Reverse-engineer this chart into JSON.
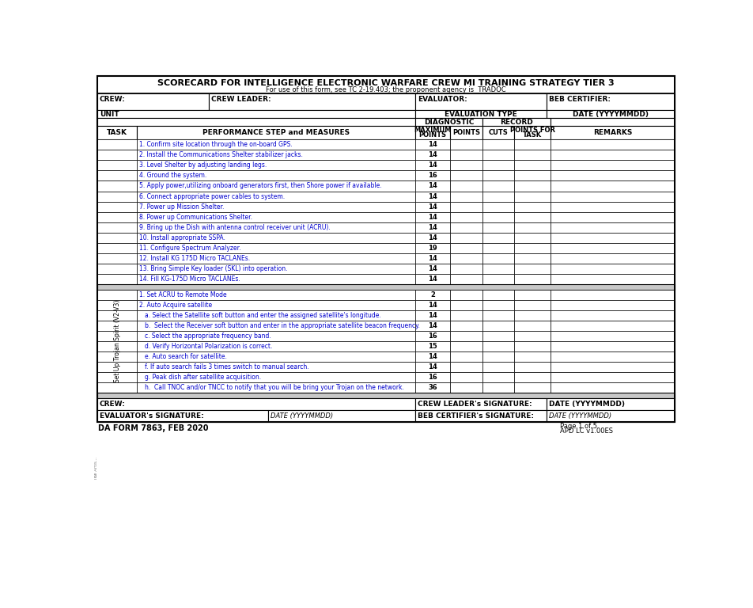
{
  "title": "SCORECARD FOR INTELLIGENCE ELECTRONIC WARFARE CREW MI TRAINING STRATEGY TIER 3",
  "subtitle": "For use of this form, see TC 2-19.403; the proponent agency is  TRADOC",
  "section1_rows": [
    [
      "1. Confirm site location through the on-board GPS.",
      "14"
    ],
    [
      "2. Install the Communications Shelter stabilizer jacks.",
      "14"
    ],
    [
      "3. Level Shelter by adjusting landing legs.",
      "14"
    ],
    [
      "4. Ground the system.",
      "16"
    ],
    [
      "5. Apply power,utilizing onboard generators first, then Shore power if available.",
      "14"
    ],
    [
      "6. Connect appropriate power cables to system.",
      "14"
    ],
    [
      "7. Power up Mission Shelter.",
      "14"
    ],
    [
      "8. Power up Communications Shelter.",
      "14"
    ],
    [
      "9. Bring up the Dish with antenna control receiver unit (ACRU).",
      "14"
    ],
    [
      "10. Install appropriate SSPA.",
      "14"
    ],
    [
      "11. Configure Spectrum Analyzer.",
      "19"
    ],
    [
      "12. Install KG 175D Micro TACLANEs.",
      "14"
    ],
    [
      "13. Bring Simple Key loader (SKL) into operation.",
      "14"
    ],
    [
      "14. Fill KG-175D Micro TACLANEs.",
      "14"
    ]
  ],
  "section2_label": "Set Up Trojan Spirit (V2-V3)",
  "section2_rows": [
    [
      "1. Set ACRU to Remote Mode",
      "2"
    ],
    [
      "2. Auto Acquire satellite",
      "14"
    ],
    [
      "a. Select the Satellite soft button and enter the assigned satellite's longitude.",
      "14"
    ],
    [
      "b.  Select the Receiver soft button and enter in the appropriate satellite beacon frequency.",
      "14"
    ],
    [
      "c. Select the appropriate frequency band.",
      "16"
    ],
    [
      "d. Verify Horizontal Polarization is correct.",
      "15"
    ],
    [
      "e. Auto search for satellite.",
      "14"
    ],
    [
      "f. If auto search fails 3 times switch to manual search.",
      "14"
    ],
    [
      "g. Peak dish after satellite acquisition.",
      "16"
    ],
    [
      "h.  Call TNOC and/or TNCC to notify that you will be bring your Trojan on the network.",
      "36"
    ]
  ],
  "form_id": "DA FORM 7863, FEB 2020",
  "page_info": "Page 1 of 5",
  "apdlc": "APD LC v1.00ES",
  "row_text_color": "#0000CD",
  "gray_sep_color": "#C8C8C8"
}
